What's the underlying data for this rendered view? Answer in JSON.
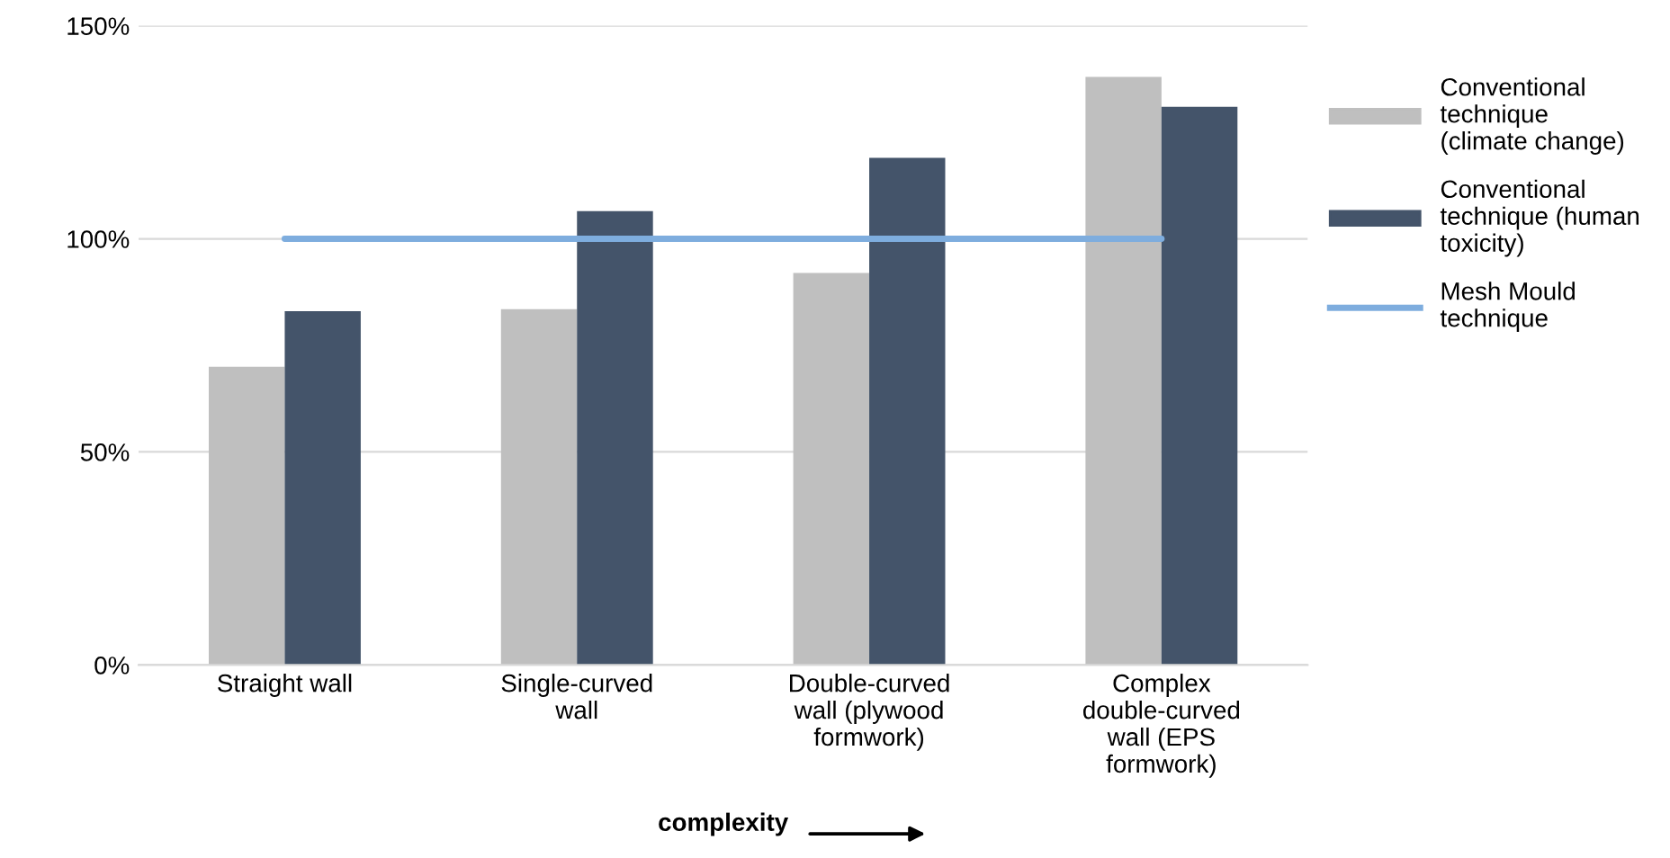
{
  "chart_data": {
    "type": "bar",
    "xlabel": "complexity",
    "categories": [
      "Straight wall",
      "Single-curved wall",
      "Double-curved wall (plywood formwork)",
      "Complex double-curved wall (EPS formwork)"
    ],
    "series": [
      {
        "name": "Conventional technique (climate change)",
        "color": "#bfbfbf",
        "values": [
          70,
          83.5,
          92,
          138
        ]
      },
      {
        "name": "Conventional technique (human toxicity)",
        "color": "#44546a",
        "values": [
          83,
          106.5,
          119,
          131
        ]
      },
      {
        "name": "Mesh Mould technique",
        "type": "line",
        "color": "#7eadde",
        "values": [
          100,
          100,
          100,
          100
        ]
      }
    ],
    "ylim": [
      0,
      150
    ],
    "yticks": [
      {
        "value": 0,
        "label": "0%"
      },
      {
        "value": 50,
        "label": "50%"
      },
      {
        "value": 100,
        "label": "100%"
      },
      {
        "value": 150,
        "label": "150%"
      }
    ],
    "grid": "y",
    "legend": "right",
    "marker": "none",
    "line_style": "solid"
  }
}
